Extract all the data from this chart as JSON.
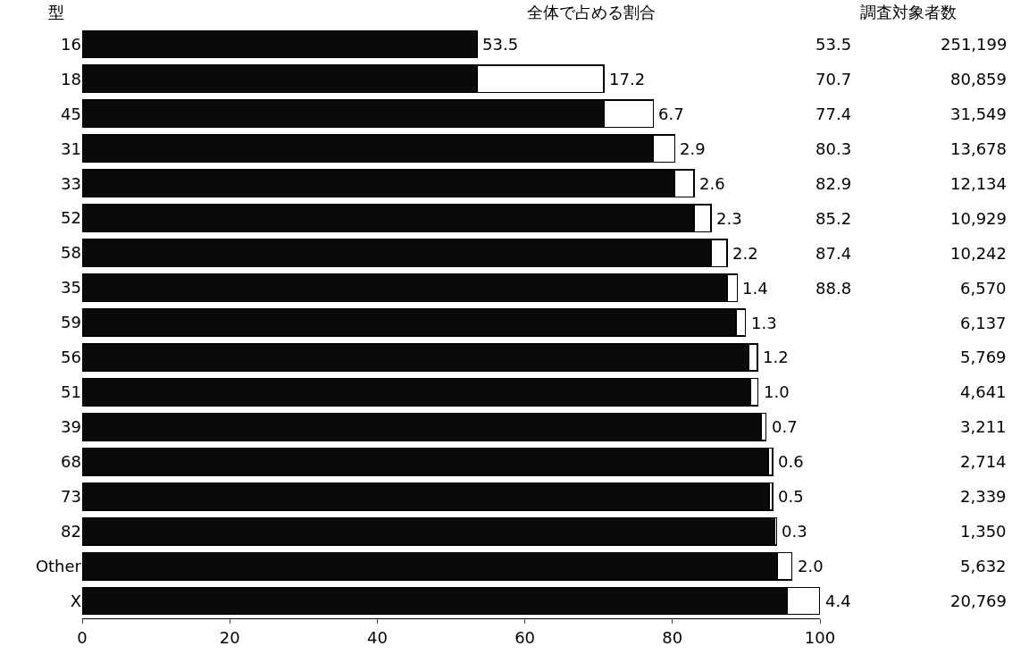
{
  "chart_data": {
    "type": "bar",
    "orientation": "horizontal",
    "stacked": true,
    "ylabel": "型",
    "categories": [
      "16",
      "18",
      "45",
      "31",
      "33",
      "52",
      "58",
      "35",
      "59",
      "56",
      "51",
      "39",
      "68",
      "73",
      "82",
      "Other",
      "X"
    ],
    "series": [
      {
        "color": "#0a0a0a",
        "values": [
          53.5,
          53.5,
          70.7,
          77.4,
          80.3,
          82.9,
          85.2,
          87.4,
          88.6,
          90.3,
          90.6,
          92.0,
          93.0,
          93.1,
          93.8,
          94.2,
          95.6
        ],
        "value_labels": [
          "53.5",
          null,
          null,
          null,
          null,
          null,
          null,
          null,
          null,
          null,
          null,
          null,
          null,
          null,
          null,
          null,
          null
        ]
      },
      {
        "color": "#ffffff",
        "values": [
          null,
          17.2,
          6.7,
          2.9,
          2.6,
          2.3,
          2.2,
          1.4,
          1.3,
          1.2,
          1.0,
          0.7,
          0.6,
          0.5,
          0.3,
          2.0,
          4.4
        ],
        "value_labels": [
          null,
          "17.2",
          "6.7",
          "2.9",
          "2.6",
          "2.3",
          "2.2",
          "1.4",
          "1.3",
          "1.2",
          "1.0",
          "0.7",
          "0.6",
          "0.5",
          "0.3",
          "2.0",
          "4.4"
        ]
      }
    ],
    "xlim": [
      0,
      100
    ],
    "xticks": [
      0,
      20,
      40,
      60,
      80,
      100
    ],
    "legend": false,
    "annotations": [
      "全体で占める割合",
      "調査対象者数",
      "53.5",
      "70.7",
      "77.4",
      "80.3",
      "82.9",
      "85.2",
      "87.4",
      "88.8",
      "251,199",
      "80,859",
      "31,549",
      "13,678",
      "12,134",
      "10,929",
      "10,242",
      "6,570",
      "6,137",
      "5,769",
      "4,641",
      "3,211",
      "2,714",
      "2,339",
      "1,350",
      "5,632",
      "20,769"
    ]
  }
}
